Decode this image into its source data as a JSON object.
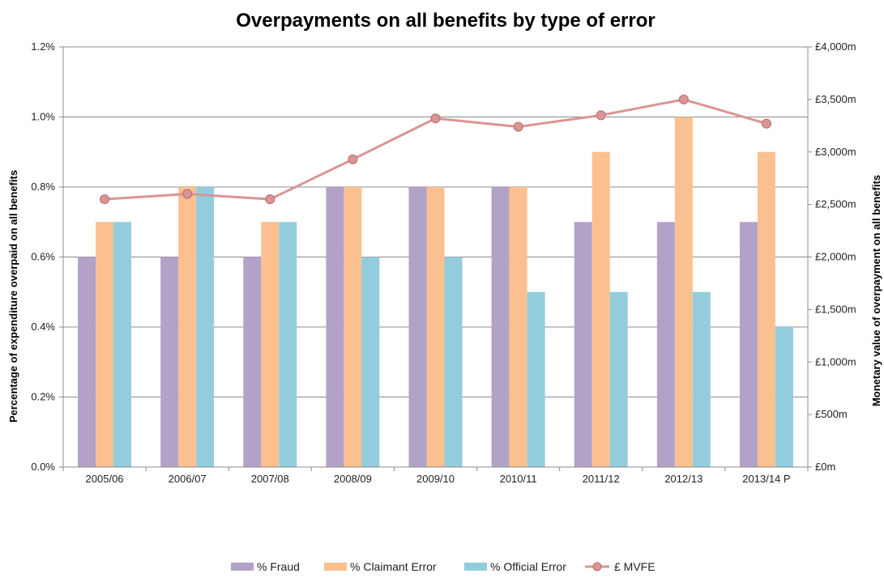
{
  "chart_data": {
    "type": "bar",
    "title": "Overpayments on all benefits by type of error",
    "categories": [
      "2005/06",
      "2006/07",
      "2007/08",
      "2008/09",
      "2009/10",
      "2010/11",
      "2011/12",
      "2012/13",
      "2013/14 P"
    ],
    "series": [
      {
        "name": "% Fraud",
        "type": "bar",
        "axis": "left",
        "color": "#b3a2c7",
        "values": [
          0.6,
          0.6,
          0.6,
          0.8,
          0.8,
          0.8,
          0.7,
          0.7,
          0.7
        ]
      },
      {
        "name": "% Claimant Error",
        "type": "bar",
        "axis": "left",
        "color": "#fac090",
        "values": [
          0.7,
          0.8,
          0.7,
          0.8,
          0.8,
          0.8,
          0.9,
          1.0,
          0.9
        ]
      },
      {
        "name": "% Official Error",
        "type": "bar",
        "axis": "left",
        "color": "#93cddd",
        "values": [
          0.7,
          0.8,
          0.7,
          0.6,
          0.6,
          0.5,
          0.5,
          0.5,
          0.4
        ]
      },
      {
        "name": "£ MVFE",
        "type": "line",
        "axis": "right",
        "color": "#d99594",
        "values": [
          2550,
          2600,
          2550,
          2930,
          3320,
          3240,
          3350,
          3500,
          3270
        ]
      }
    ],
    "ylabel": "Percentage of expenditure overpaid on all benefits",
    "ylabel_right": "Monetary value of overpayment on all benefits",
    "ylim": [
      0,
      1.2
    ],
    "ylim_right": [
      0,
      4000
    ],
    "yticks": [
      "0.0%",
      "0.2%",
      "0.4%",
      "0.6%",
      "0.8%",
      "1.0%",
      "1.2%"
    ],
    "yticks_right": [
      "£0m",
      "£500m",
      "£1,000m",
      "£1,500m",
      "£2,000m",
      "£2,500m",
      "£3,000m",
      "£3,500m",
      "£4,000m"
    ],
    "grid": true,
    "legend_position": "bottom"
  }
}
